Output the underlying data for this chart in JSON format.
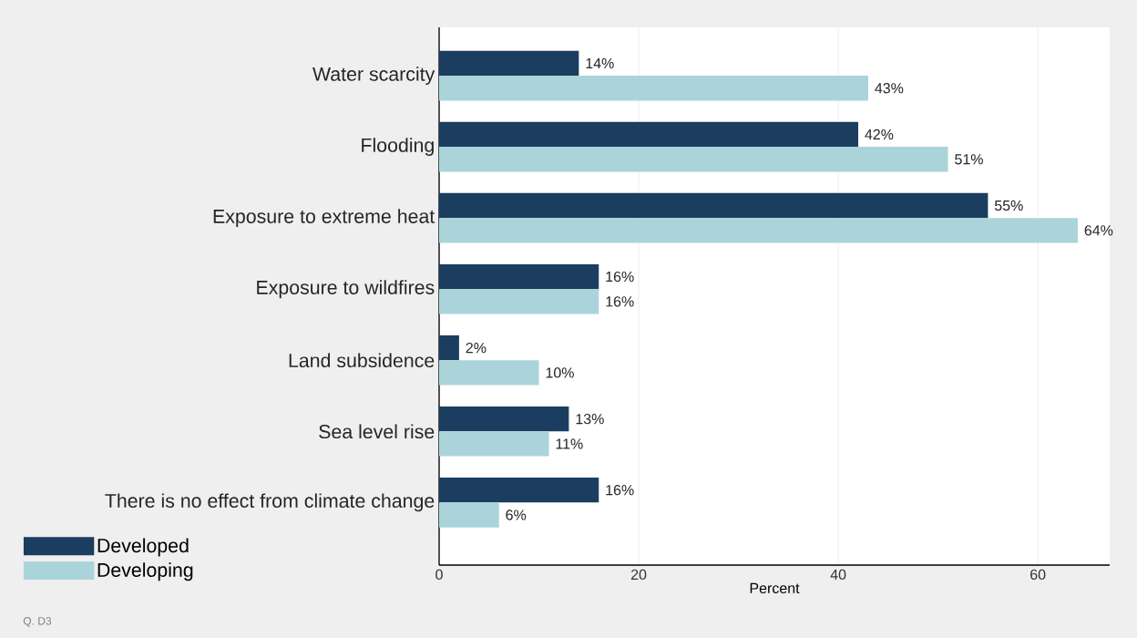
{
  "chart_data": {
    "type": "bar",
    "orientation": "horizontal",
    "categories": [
      "Water scarcity",
      "Flooding",
      "Exposure to extreme heat",
      "Exposure to wildfires",
      "Land subsidence",
      "Sea level rise",
      "There is no effect from climate change"
    ],
    "series": [
      {
        "name": "Developed",
        "color": "#1b3d5f",
        "values": [
          14,
          42,
          55,
          16,
          2,
          13,
          16
        ],
        "value_labels": [
          "14%",
          "42%",
          "55%",
          "16%",
          "2%",
          "13%",
          "16%"
        ]
      },
      {
        "name": "Developing",
        "color": "#aad4d9",
        "values": [
          43,
          51,
          64,
          16,
          10,
          11,
          6
        ],
        "value_labels": [
          "43%",
          "51%",
          "64%",
          "16%",
          "10%",
          "11%",
          "6%"
        ]
      }
    ],
    "xlabel": "Percent",
    "xlim": [
      0,
      67.2
    ],
    "xticks": [
      0,
      20,
      40,
      60
    ],
    "grid": "x",
    "legend": "bottom left",
    "annotations": [
      "Q. D3"
    ]
  }
}
